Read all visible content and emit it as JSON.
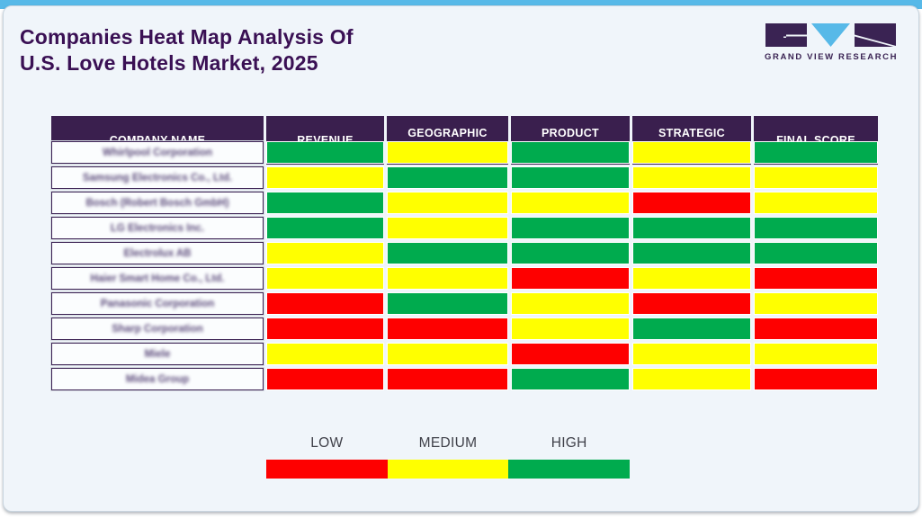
{
  "page": {
    "title_line1": "Companies Heat Map Analysis Of",
    "title_line2": "U.S. Love Hotels Market, 2025"
  },
  "logo": {
    "name": "grand-view-research-logo",
    "text": "GRAND VIEW RESEARCH",
    "brand_purple": "#3a2353",
    "brand_blue": "#57b9e8"
  },
  "chart_data": {
    "type": "heatmap",
    "title": "Companies Heat Map Analysis Of U.S. Love Hotels Market, 2025",
    "columns": [
      "COMPANY NAME",
      "REVENUE",
      "GEOGRAPHIC PRESENCE",
      "PRODUCT POFTFOLIO",
      "STRATEGIC INTIATIVES",
      "FINAL SCORE"
    ],
    "rows": [
      {
        "company": "Whirlpool Corporation",
        "values": [
          "high",
          "medium",
          "high",
          "medium",
          "high"
        ]
      },
      {
        "company": "Samsung Electronics Co., Ltd.",
        "values": [
          "medium",
          "high",
          "high",
          "medium",
          "medium"
        ]
      },
      {
        "company": "Bosch (Robert Bosch GmbH)",
        "values": [
          "high",
          "medium",
          "medium",
          "low",
          "medium"
        ]
      },
      {
        "company": "LG Electronics Inc.",
        "values": [
          "high",
          "medium",
          "high",
          "high",
          "high"
        ]
      },
      {
        "company": "Electrolux AB",
        "values": [
          "medium",
          "high",
          "high",
          "high",
          "high"
        ]
      },
      {
        "company": "Haier Smart Home Co., Ltd.",
        "values": [
          "medium",
          "medium",
          "low",
          "medium",
          "low"
        ]
      },
      {
        "company": "Panasonic Corporation",
        "values": [
          "low",
          "high",
          "medium",
          "low",
          "medium"
        ]
      },
      {
        "company": "Sharp Corporation",
        "values": [
          "low",
          "low",
          "medium",
          "high",
          "low"
        ]
      },
      {
        "company": "Miele",
        "values": [
          "medium",
          "medium",
          "low",
          "medium",
          "medium"
        ]
      },
      {
        "company": "Midea Group",
        "values": [
          "low",
          "low",
          "high",
          "medium",
          "low"
        ]
      }
    ],
    "legend": [
      {
        "label": "LOW",
        "level": "low",
        "color": "#fe0000"
      },
      {
        "label": "MEDIUM",
        "level": "medium",
        "color": "#ffff00"
      },
      {
        "label": "HIGH",
        "level": "high",
        "color": "#00ab4e"
      }
    ],
    "colors": {
      "low": "#fe0000",
      "medium": "#ffff00",
      "high": "#00ab4e",
      "header": "#3a1f4e"
    },
    "layout": {
      "legend_position": "bottom",
      "grid": false
    }
  }
}
